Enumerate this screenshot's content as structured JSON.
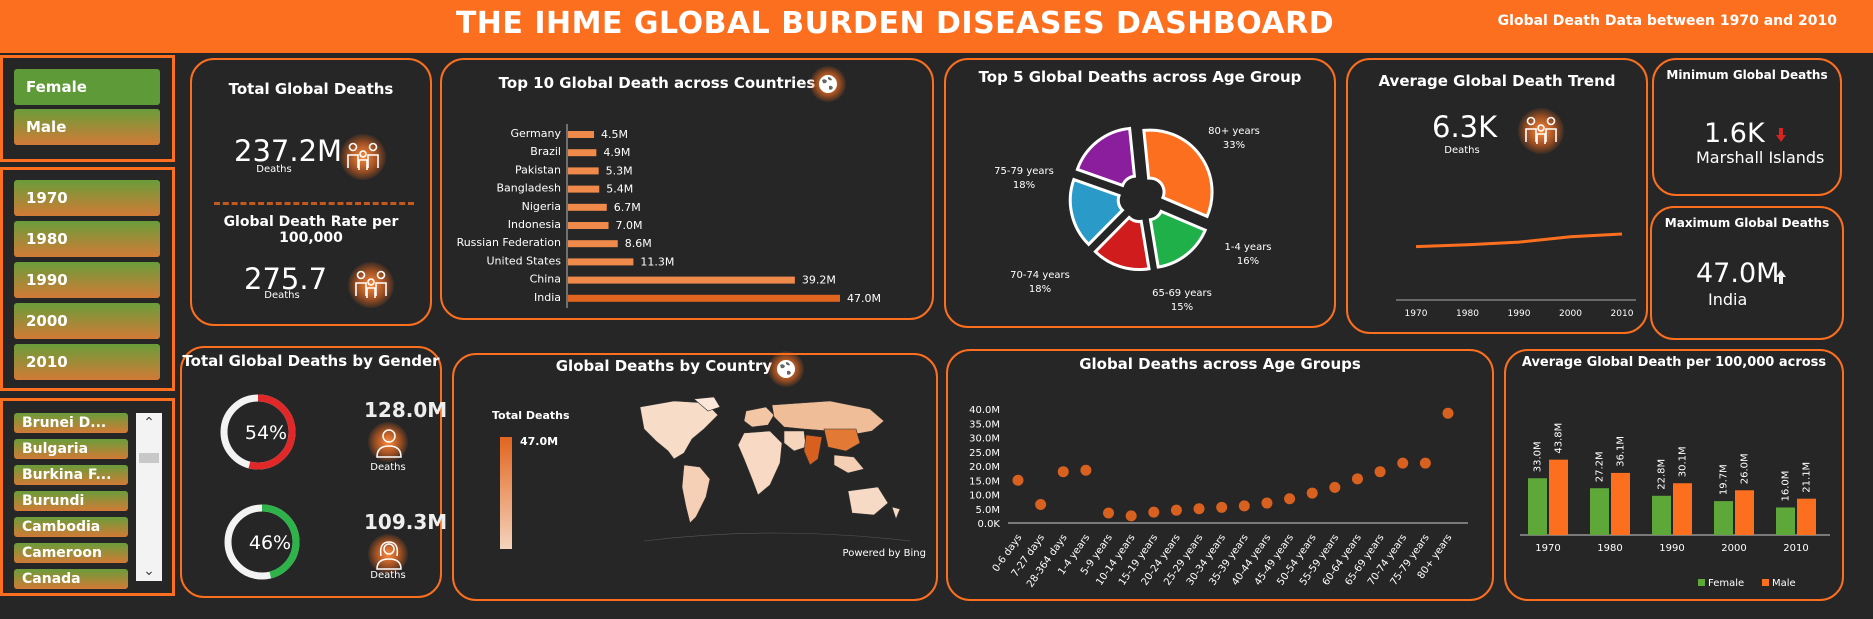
{
  "header": {
    "title": "THE IHME GLOBAL BURDEN DISEASES DASHBOARD",
    "subtitle": "Global Death Data between 1970 and 2010"
  },
  "gender_slicer": {
    "items": [
      "Female",
      "Male"
    ]
  },
  "year_slicer": {
    "items": [
      "1970",
      "1980",
      "1990",
      "2000",
      "2010"
    ]
  },
  "country_slicer": {
    "items": [
      "Brunei D...",
      "Bulgaria",
      "Burkina F...",
      "Burundi",
      "Cambodia",
      "Cameroon",
      "Canada"
    ]
  },
  "total_deaths": {
    "title": "Total Global Deaths",
    "value": "237.2M",
    "label": "Deaths"
  },
  "death_rate": {
    "title": "Global Death Rate per 100,000",
    "value": "275.7",
    "label": "Deaths"
  },
  "gender_card": {
    "title": "Total Global Deaths by Gender",
    "female_pct": "54%",
    "male_pct": "46%",
    "female_fraction": 0.54,
    "male_fraction": 0.46,
    "female_value": "128.0M",
    "male_value": "109.3M",
    "label": "Deaths",
    "colors": {
      "female": "#e02828",
      "male": "#2eb34a"
    }
  },
  "avg_trend": {
    "title": "Average Global Death Trend",
    "value": "6.3K",
    "label": "Deaths"
  },
  "min_card": {
    "title": "Minimum Global Deaths",
    "value": "1.6K",
    "country": "Marshall Islands"
  },
  "max_card": {
    "title": "Maximum Global Deaths",
    "value": "47.0M",
    "country": "India"
  },
  "map_card": {
    "title": "Global Deaths by Country",
    "legend_title": "Total Deaths",
    "legend_value": "47.0M",
    "powered": "Powered by Bing"
  },
  "chart_data": [
    {
      "type": "bar",
      "orientation": "horizontal",
      "title": "Top 10 Global Death across Countries",
      "categories": [
        "Germany",
        "Brazil",
        "Pakistan",
        "Bangladesh",
        "Nigeria",
        "Indonesia",
        "Russian Federation",
        "United States",
        "China",
        "India"
      ],
      "values": [
        4.5,
        4.9,
        5.3,
        5.4,
        6.7,
        7.0,
        8.6,
        11.3,
        39.2,
        47.0
      ],
      "labels": [
        "4.5M",
        "4.9M",
        "5.3M",
        "5.4M",
        "6.7M",
        "7.0M",
        "8.6M",
        "11.3M",
        "39.2M",
        "47.0M"
      ]
    },
    {
      "type": "pie",
      "title": "Top 5 Global Deaths across Age Group",
      "categories": [
        "80+ years",
        "1-4 years",
        "65-69 years",
        "70-74 years",
        "75-79 years"
      ],
      "values": [
        33,
        16,
        15,
        18,
        18
      ],
      "labels": [
        "33%",
        "16%",
        "15%",
        "18%",
        "18%"
      ],
      "colors": [
        "#fb6f1f",
        "#1fb04a",
        "#d01c1c",
        "#2a9bc9",
        "#8a1e9c"
      ]
    },
    {
      "type": "line",
      "title": "Average Global Death Trend",
      "x": [
        "1970",
        "1980",
        "1990",
        "2000",
        "2010"
      ],
      "values": [
        5.6,
        5.8,
        6.1,
        6.7,
        7.0
      ]
    },
    {
      "type": "scatter",
      "title": "Global Deaths across Age Groups",
      "categories": [
        "0-6 days",
        "7-27 days",
        "28-364 days",
        "1-4 years",
        "5-9 years",
        "10-14 years",
        "15-19 years",
        "20-24 years",
        "25-29 years",
        "30-34 years",
        "35-39 years",
        "40-44 years",
        "45-49 years",
        "50-54 years",
        "55-59 years",
        "60-64 years",
        "65-69 years",
        "70-74 years",
        "75-79 years",
        "80+ years"
      ],
      "values": [
        15,
        6.5,
        18,
        18.5,
        3.5,
        2.5,
        3.8,
        4.5,
        5,
        5.5,
        6,
        7,
        8.5,
        10.5,
        12.5,
        15.5,
        18,
        21,
        21,
        38.5
      ],
      "yticks": [
        "0.0K",
        "5.0M",
        "10.0M",
        "15.0M",
        "20.0M",
        "25.0M",
        "30.0M",
        "35.0M",
        "40.0M"
      ],
      "ylim": [
        0,
        40
      ]
    },
    {
      "type": "bar",
      "title": "Average Global Death per 100,000 across",
      "categories": [
        "1970",
        "1980",
        "1990",
        "2000",
        "2010"
      ],
      "series": [
        {
          "name": "Female",
          "values": [
            33.0,
            27.2,
            22.8,
            19.7,
            16.0
          ],
          "labels": [
            "33.0M",
            "27.2M",
            "22.8M",
            "19.7M",
            "16.0M"
          ],
          "color": "#5ea83a"
        },
        {
          "name": "Male",
          "values": [
            43.8,
            36.1,
            30.1,
            26.0,
            21.1
          ],
          "labels": [
            "43.8M",
            "36.1M",
            "30.1M",
            "26.0M",
            "21.1M"
          ],
          "color": "#fb6f1f"
        }
      ]
    }
  ]
}
